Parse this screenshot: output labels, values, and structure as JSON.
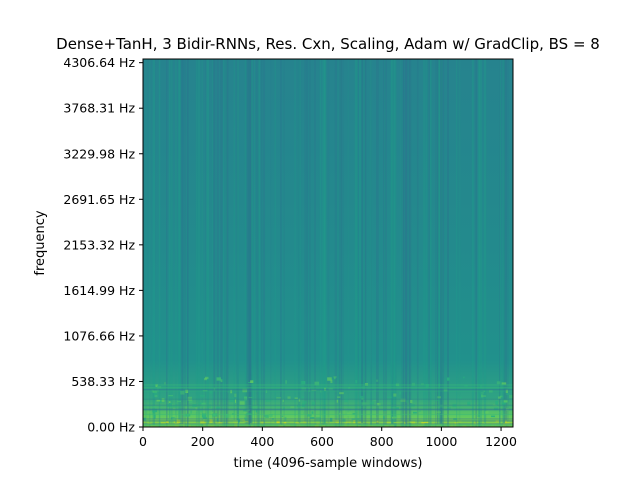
{
  "chart_data": {
    "type": "heatmap",
    "title": "Dense+TanH, 3 Bidir-RNNs, Res. Cxn, Scaling, Adam w/ GradClip, BS = 8",
    "xlabel": "time (4096-sample windows)",
    "ylabel": "frequency",
    "xlim": [
      0,
      1240
    ],
    "ylim": [
      0,
      4350
    ],
    "x_ticks": [
      {
        "value": 0,
        "label": "0"
      },
      {
        "value": 200,
        "label": "200"
      },
      {
        "value": 400,
        "label": "400"
      },
      {
        "value": 600,
        "label": "600"
      },
      {
        "value": 800,
        "label": "800"
      },
      {
        "value": 1000,
        "label": "1000"
      },
      {
        "value": 1200,
        "label": "1200"
      }
    ],
    "y_ticks": [
      {
        "value": 0.0,
        "label": "0.00 Hz"
      },
      {
        "value": 538.33,
        "label": "538.33 Hz"
      },
      {
        "value": 1076.66,
        "label": "1076.66 Hz"
      },
      {
        "value": 1614.99,
        "label": "1614.99 Hz"
      },
      {
        "value": 2153.32,
        "label": "2153.32 Hz"
      },
      {
        "value": 2691.65,
        "label": "2691.65 Hz"
      },
      {
        "value": 3229.98,
        "label": "3229.98 Hz"
      },
      {
        "value": 3768.31,
        "label": "3768.31 Hz"
      },
      {
        "value": 4306.64,
        "label": "4306.64 Hz"
      }
    ],
    "colormap": "viridis",
    "colors": {
      "low": "#2a7e8e",
      "mid": "#22948b",
      "high": "#c8e020"
    },
    "grid": false,
    "description_of_values": "spectrogram intensity, brightest (yellow-green) below ~300 Hz, mostly uniform teal above"
  }
}
